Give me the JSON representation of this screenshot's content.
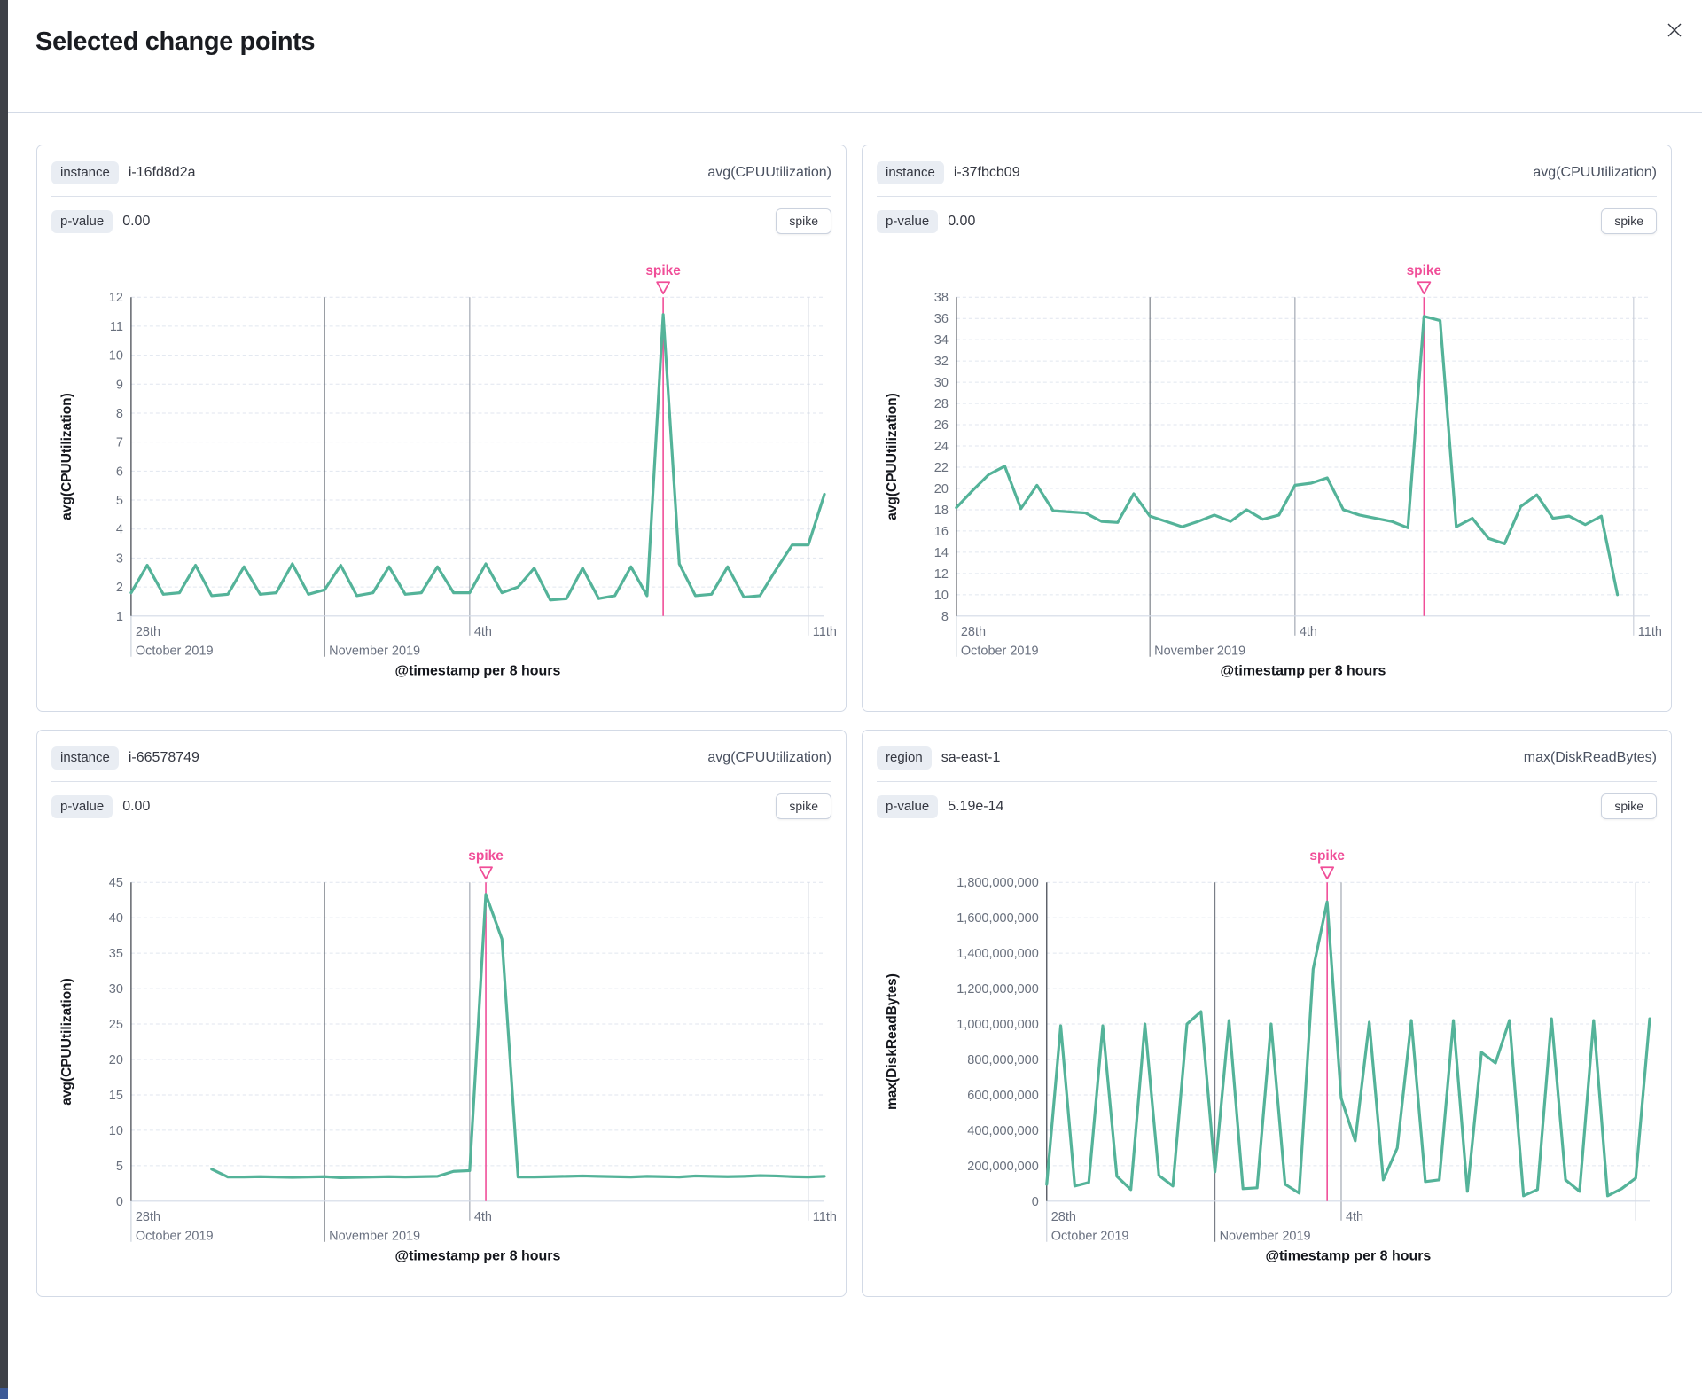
{
  "colors": {
    "line_green": "#54B399",
    "spike_pink": "#F04E98"
  },
  "modal": {
    "title": "Selected change points"
  },
  "cards": [
    {
      "field_label": "instance",
      "field_value": "i-16fd8d2a",
      "agg": "avg(CPUUtilization)",
      "pvalue_label": "p-value",
      "pvalue": "0.00",
      "change_type": "spike"
    },
    {
      "field_label": "instance",
      "field_value": "i-37fbcb09",
      "agg": "avg(CPUUtilization)",
      "pvalue_label": "p-value",
      "pvalue": "0.00",
      "change_type": "spike"
    },
    {
      "field_label": "instance",
      "field_value": "i-66578749",
      "agg": "avg(CPUUtilization)",
      "pvalue_label": "p-value",
      "pvalue": "0.00",
      "change_type": "spike"
    },
    {
      "field_label": "region",
      "field_value": "sa-east-1",
      "agg": "max(DiskReadBytes)",
      "pvalue_label": "p-value",
      "pvalue": "5.19e-14",
      "change_type": "spike"
    }
  ],
  "chart_data": [
    {
      "type": "line",
      "name": "instance i-16fd8d2a",
      "ylabel": "avg(CPUUtilization)",
      "xlabel": "@timestamp per 8 hours",
      "ylim": [
        1,
        12
      ],
      "ytick_step": 1,
      "y_format": "plain",
      "x_count": 44,
      "start_index": 0,
      "annotation": {
        "label": "spike",
        "index": 33
      },
      "x_ticks": [
        {
          "index": 0,
          "line1": "28th",
          "line2": "October 2019",
          "style": "edge"
        },
        {
          "index": 12,
          "line1": "",
          "line2": "November 2019",
          "style": "dark"
        },
        {
          "index": 21,
          "line1": "4th",
          "line2": "",
          "style": "mid"
        },
        {
          "index": 42,
          "line1": "11th",
          "line2": "",
          "style": "light"
        }
      ],
      "values": [
        1.8,
        2.75,
        1.75,
        1.8,
        2.75,
        1.7,
        1.75,
        2.7,
        1.75,
        1.8,
        2.8,
        1.75,
        1.9,
        2.75,
        1.7,
        1.8,
        2.7,
        1.75,
        1.8,
        2.7,
        1.8,
        1.8,
        2.8,
        1.8,
        2.0,
        2.65,
        1.55,
        1.6,
        2.65,
        1.6,
        1.7,
        2.7,
        1.7,
        11.4,
        2.8,
        1.7,
        1.75,
        2.7,
        1.65,
        1.7,
        2.6,
        3.45,
        3.45,
        5.2
      ]
    },
    {
      "type": "line",
      "name": "instance i-37fbcb09",
      "ylabel": "avg(CPUUtilization)",
      "xlabel": "@timestamp per 8 hours",
      "ylim": [
        8,
        38
      ],
      "ytick_step": 2,
      "y_format": "plain",
      "x_count": 44,
      "start_index": 0,
      "annotation": {
        "label": "spike",
        "index": 29
      },
      "x_ticks": [
        {
          "index": 0,
          "line1": "28th",
          "line2": "October 2019",
          "style": "edge"
        },
        {
          "index": 12,
          "line1": "",
          "line2": "November 2019",
          "style": "dark"
        },
        {
          "index": 21,
          "line1": "4th",
          "line2": "",
          "style": "mid"
        },
        {
          "index": 42,
          "line1": "11th",
          "line2": "",
          "style": "light"
        }
      ],
      "values": [
        18.2,
        19.8,
        21.3,
        22.1,
        18.1,
        20.3,
        17.9,
        17.8,
        17.7,
        16.9,
        16.8,
        19.5,
        17.4,
        16.9,
        16.4,
        16.9,
        17.5,
        16.9,
        18.0,
        17.1,
        17.5,
        20.3,
        20.5,
        21.0,
        18.0,
        17.5,
        17.2,
        16.9,
        16.3,
        36.2,
        35.8,
        16.4,
        17.2,
        15.3,
        14.8,
        18.3,
        19.4,
        17.2,
        17.4,
        16.6,
        17.4,
        10.0
      ]
    },
    {
      "type": "line",
      "name": "instance i-66578749",
      "ylabel": "avg(CPUUtilization)",
      "xlabel": "@timestamp per 8 hours",
      "ylim": [
        0,
        45
      ],
      "ytick_step": 5,
      "y_format": "plain",
      "x_count": 44,
      "start_index": 5,
      "annotation": {
        "label": "spike",
        "index": 22
      },
      "x_ticks": [
        {
          "index": 0,
          "line1": "28th",
          "line2": "October 2019",
          "style": "edge"
        },
        {
          "index": 12,
          "line1": "",
          "line2": "November 2019",
          "style": "dark"
        },
        {
          "index": 21,
          "line1": "4th",
          "line2": "",
          "style": "mid"
        },
        {
          "index": 42,
          "line1": "11th",
          "line2": "",
          "style": "light"
        }
      ],
      "values": [
        4.5,
        3.4,
        3.4,
        3.45,
        3.4,
        3.35,
        3.4,
        3.45,
        3.3,
        3.35,
        3.4,
        3.45,
        3.4,
        3.45,
        3.5,
        4.2,
        4.3,
        43.3,
        37.0,
        3.4,
        3.4,
        3.45,
        3.5,
        3.55,
        3.5,
        3.45,
        3.4,
        3.5,
        3.45,
        3.4,
        3.55,
        3.5,
        3.45,
        3.5,
        3.6,
        3.55,
        3.45,
        3.4,
        3.5
      ]
    },
    {
      "type": "line",
      "name": "region sa-east-1",
      "ylabel": "max(DiskReadBytes)",
      "xlabel": "@timestamp per 8 hours",
      "ylim": [
        0,
        1800000000
      ],
      "ytick_step": 200000000,
      "y_format": "comma",
      "x_count": 44,
      "start_index": 0,
      "annotation": {
        "label": "spike",
        "index": 20
      },
      "x_ticks": [
        {
          "index": 0,
          "line1": "28th",
          "line2": "October 2019",
          "style": "edge"
        },
        {
          "index": 12,
          "line1": "",
          "line2": "November 2019",
          "style": "dark"
        },
        {
          "index": 21,
          "line1": "4th",
          "line2": "",
          "style": "mid"
        },
        {
          "index": 42,
          "line1": "",
          "line2": "",
          "style": "light"
        }
      ],
      "values": [
        95000000,
        990000000,
        85000000,
        105000000,
        990000000,
        140000000,
        65000000,
        1000000000,
        145000000,
        85000000,
        1000000000,
        1070000000,
        165000000,
        1020000000,
        70000000,
        75000000,
        1000000000,
        95000000,
        45000000,
        1310000000,
        1690000000,
        580000000,
        340000000,
        1010000000,
        120000000,
        300000000,
        1020000000,
        110000000,
        120000000,
        1020000000,
        55000000,
        840000000,
        780000000,
        1020000000,
        30000000,
        65000000,
        1030000000,
        120000000,
        55000000,
        1020000000,
        30000000,
        70000000,
        130000000,
        1030000000
      ]
    }
  ]
}
